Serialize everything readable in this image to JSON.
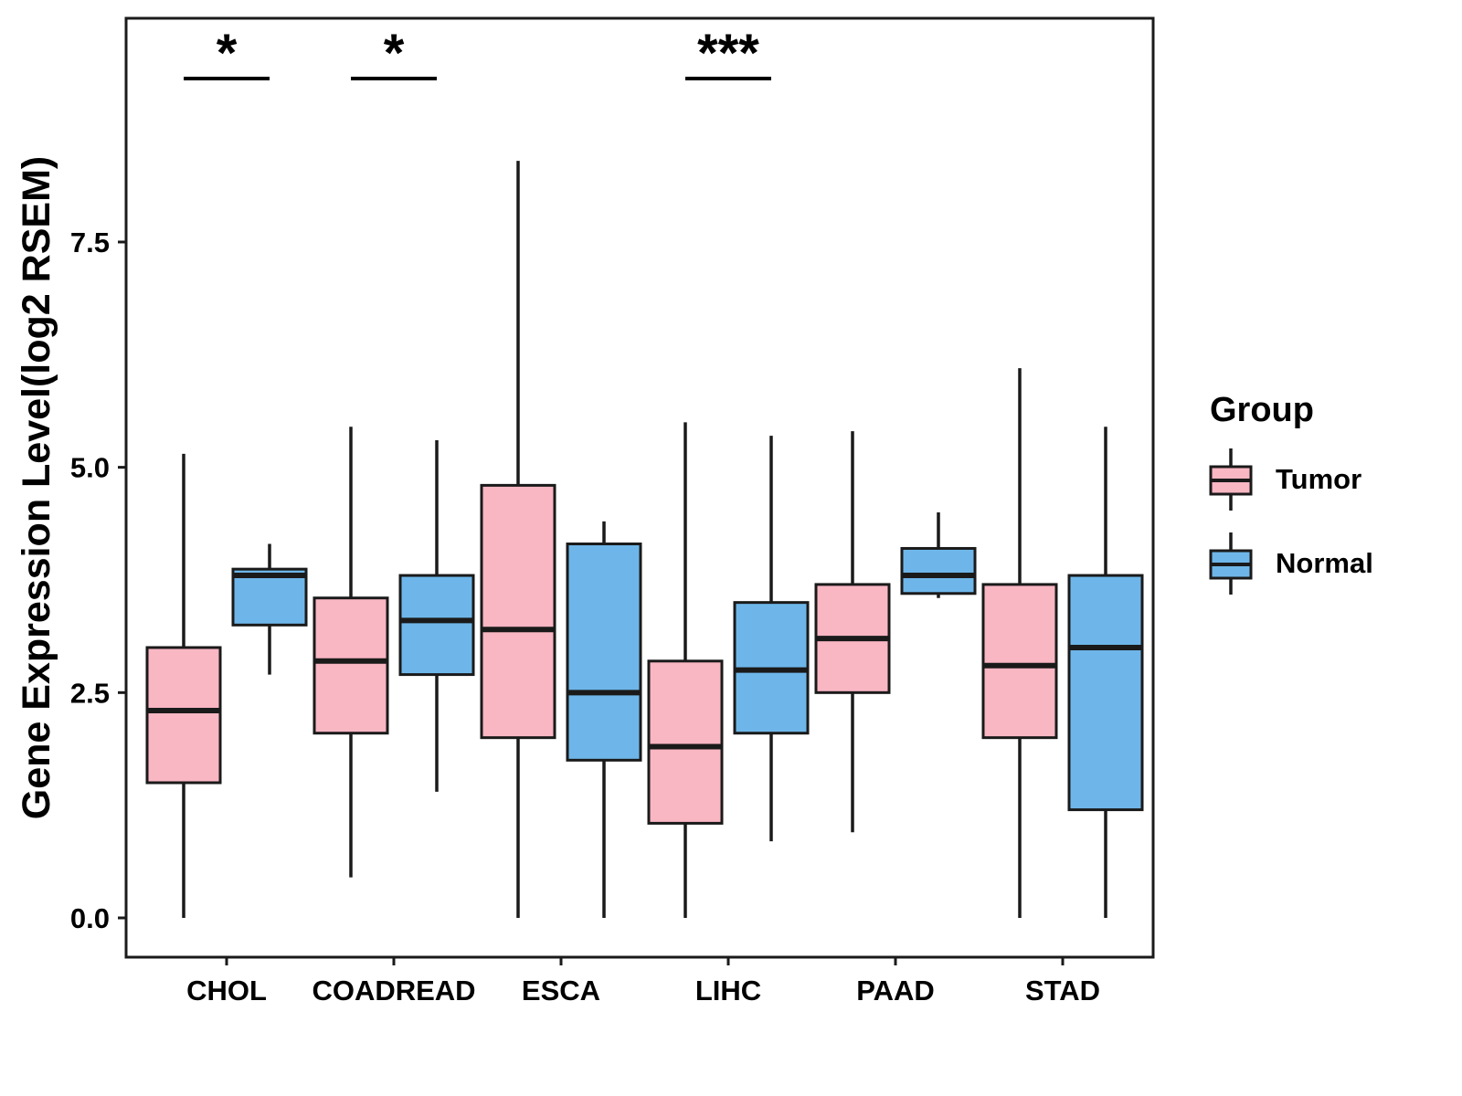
{
  "chart_data": {
    "type": "boxplot",
    "title": "",
    "ylabel": "Gene Expression Level(log2 RSEM)",
    "xlabel": "",
    "ylim": [
      0,
      8.4
    ],
    "y_ticks": [
      0.0,
      2.5,
      5.0,
      7.5
    ],
    "grid": "off",
    "categories": [
      "CHOL",
      "COADREAD",
      "ESCA",
      "LIHC",
      "PAAD",
      "STAD"
    ],
    "box_stats_order": [
      "whisker_low",
      "q1",
      "median",
      "q3",
      "whisker_high"
    ],
    "series": [
      {
        "name": "Tumor",
        "color": "#F9B6C3",
        "boxes": [
          [
            0.0,
            1.5,
            2.3,
            3.0,
            5.15
          ],
          [
            0.45,
            2.05,
            2.85,
            3.55,
            5.45
          ],
          [
            0.0,
            2.0,
            3.2,
            4.8,
            8.4
          ],
          [
            0.0,
            1.05,
            1.9,
            2.85,
            5.5
          ],
          [
            0.95,
            2.5,
            3.1,
            3.7,
            5.4
          ],
          [
            0.0,
            2.0,
            2.8,
            3.7,
            6.1
          ]
        ]
      },
      {
        "name": "Normal",
        "color": "#6EB6E9",
        "boxes": [
          [
            2.7,
            3.25,
            3.8,
            3.87,
            4.15
          ],
          [
            1.4,
            2.7,
            3.3,
            3.8,
            5.3
          ],
          [
            0.0,
            1.75,
            2.5,
            4.15,
            4.4
          ],
          [
            0.85,
            2.05,
            2.75,
            3.5,
            5.35
          ],
          [
            3.55,
            3.6,
            3.8,
            4.1,
            4.5
          ],
          [
            0.0,
            1.2,
            3.0,
            3.8,
            5.45
          ]
        ]
      }
    ],
    "annotations": [
      {
        "category": "CHOL",
        "label": "*"
      },
      {
        "category": "COADREAD",
        "label": "*"
      },
      {
        "category": "LIHC",
        "label": "***"
      }
    ],
    "legend": {
      "title": "Group",
      "position": "right",
      "entries": [
        {
          "label": "Tumor",
          "color": "#F9B6C3"
        },
        {
          "label": "Normal",
          "color": "#6EB6E9"
        }
      ]
    },
    "style": {
      "box_stroke": "#1A1A1A",
      "background": "#FFFFFF",
      "text_color": "#000000"
    }
  }
}
